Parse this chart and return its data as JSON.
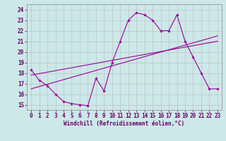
{
  "x_ticks": [
    0,
    1,
    2,
    3,
    4,
    5,
    6,
    7,
    8,
    9,
    10,
    11,
    12,
    13,
    14,
    15,
    16,
    17,
    18,
    19,
    20,
    21,
    22,
    23
  ],
  "line1_x": [
    0,
    1,
    2,
    3,
    4,
    5,
    6,
    7,
    8,
    9,
    10,
    11,
    12,
    13,
    14,
    15,
    16,
    17,
    18,
    19,
    20,
    21,
    22,
    23
  ],
  "line1_y": [
    18.3,
    17.3,
    16.8,
    16.0,
    15.3,
    15.1,
    15.0,
    14.9,
    17.5,
    16.3,
    19.0,
    21.0,
    23.0,
    23.7,
    23.5,
    23.0,
    22.0,
    22.0,
    23.5,
    21.0,
    19.5,
    18.0,
    16.5,
    16.5
  ],
  "line2_x": [
    0,
    23
  ],
  "line2_y": [
    16.5,
    21.5
  ],
  "line3_x": [
    0,
    23
  ],
  "line3_y": [
    17.8,
    21.0
  ],
  "line_color": "#990099",
  "marker": "D",
  "markersize": 1.8,
  "linewidth": 0.8,
  "ylim": [
    14.5,
    24.5
  ],
  "xlim": [
    -0.5,
    23.5
  ],
  "yticks": [
    15,
    16,
    17,
    18,
    19,
    20,
    21,
    22,
    23,
    24
  ],
  "xlabel": "Windchill (Refroidissement éolien,°C)",
  "bg_color": "#cce8e8",
  "grid_color": "#bbbbbb",
  "font_color": "#660066",
  "tick_fontsize": 5.5,
  "label_fontsize": 5.5
}
